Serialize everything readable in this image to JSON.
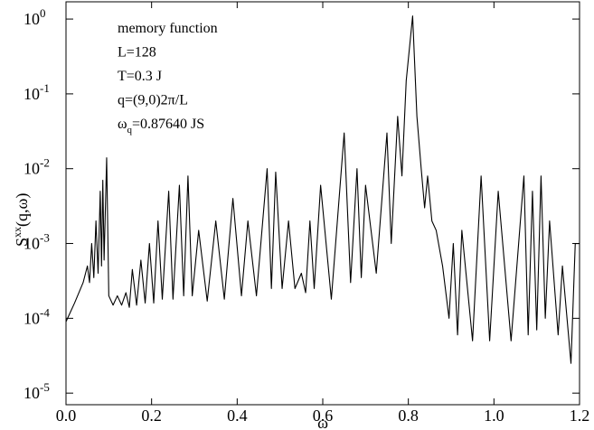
{
  "chart_data": {
    "type": "line",
    "log_y": true,
    "color": "#000000",
    "xlabel": "ω",
    "ylabel": [
      "S",
      "xx",
      "(q,ω)"
    ],
    "annotations": [
      "memory function",
      "L=128",
      "T=0.3 J",
      "q=(9,0)2π/L",
      [
        "ω",
        "q",
        "=0.87640 JS"
      ]
    ],
    "xlim": [
      0,
      1.2
    ],
    "xticks": [
      {
        "value": 0,
        "label": "0.0"
      },
      0.2,
      0.4,
      0.6,
      0.8,
      {
        "value": 1,
        "label": "1.0"
      },
      1.2
    ],
    "ylim": [
      7e-06,
      1.7
    ],
    "yticks": [
      {
        "value": 1e-05,
        "label": "10",
        "exponent": "-5"
      },
      {
        "value": 0.0001,
        "label": "10",
        "exponent": "-4"
      },
      {
        "value": 0.001,
        "label": "10",
        "exponent": "-3"
      },
      {
        "value": 0.01,
        "label": "10",
        "exponent": "-2"
      },
      {
        "value": 0.1,
        "label": "10",
        "exponent": "-1"
      },
      {
        "value": 1,
        "label": "10",
        "exponent": "0"
      }
    ],
    "x": [
      0,
      0.02,
      0.04,
      0.05,
      0.055,
      0.06,
      0.065,
      0.07,
      0.075,
      0.08,
      0.083,
      0.086,
      0.089,
      0.095,
      0.1,
      0.11,
      0.12,
      0.13,
      0.14,
      0.148,
      0.155,
      0.165,
      0.175,
      0.185,
      0.195,
      0.205,
      0.215,
      0.225,
      0.24,
      0.25,
      0.265,
      0.275,
      0.285,
      0.295,
      0.31,
      0.33,
      0.35,
      0.37,
      0.39,
      0.41,
      0.425,
      0.445,
      0.47,
      0.48,
      0.49,
      0.505,
      0.52,
      0.535,
      0.55,
      0.56,
      0.57,
      0.58,
      0.595,
      0.62,
      0.65,
      0.665,
      0.68,
      0.69,
      0.7,
      0.725,
      0.75,
      0.76,
      0.775,
      0.785,
      0.795,
      0.81,
      0.82,
      0.83,
      0.838,
      0.845,
      0.855,
      0.865,
      0.88,
      0.895,
      0.905,
      0.915,
      0.925,
      0.95,
      0.97,
      0.99,
      1.01,
      1.04,
      1.07,
      1.08,
      1.09,
      1.1,
      1.11,
      1.12,
      1.13,
      1.15,
      1.16,
      1.18,
      1.19,
      1.2
    ],
    "values": [
      9e-05,
      0.00016,
      0.0003,
      0.0005,
      0.0003,
      0.001,
      0.00035,
      0.002,
      0.0004,
      0.005,
      0.0005,
      0.007,
      0.0006,
      0.014,
      0.0002,
      0.00015,
      0.0002,
      0.00015,
      0.00022,
      0.00014,
      0.00045,
      0.00015,
      0.0006,
      0.00016,
      0.001,
      0.00016,
      0.002,
      0.00018,
      0.005,
      0.00018,
      0.006,
      0.0002,
      0.008,
      0.0002,
      0.0015,
      0.00017,
      0.002,
      0.00018,
      0.004,
      0.0002,
      0.002,
      0.0002,
      0.01,
      0.00025,
      0.009,
      0.00025,
      0.002,
      0.00025,
      0.0004,
      0.00022,
      0.002,
      0.00025,
      0.006,
      0.00018,
      0.03,
      0.0003,
      0.01,
      0.00035,
      0.006,
      0.0004,
      0.03,
      0.001,
      0.05,
      0.008,
      0.15,
      1.1,
      0.05,
      0.01,
      0.003,
      0.008,
      0.002,
      0.0015,
      0.0005,
      0.0001,
      0.001,
      6e-05,
      0.0015,
      5e-05,
      0.008,
      5e-05,
      0.005,
      5e-05,
      0.008,
      6e-05,
      0.005,
      7e-05,
      0.008,
      0.0001,
      0.002,
      6e-05,
      0.0005,
      2.5e-05,
      0.001,
      0.001
    ]
  }
}
